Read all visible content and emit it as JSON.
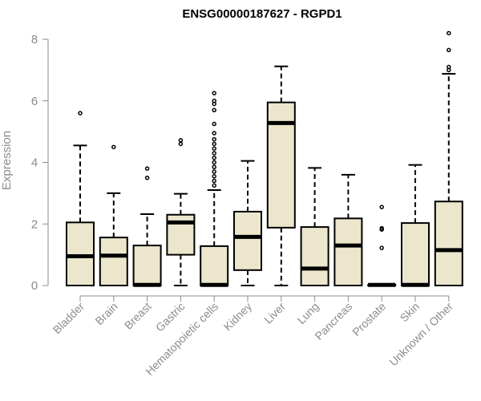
{
  "chart_data": {
    "type": "boxplot",
    "title": "ENSG00000187627 - RGPD1",
    "ylabel": "Expression",
    "xlabel": "",
    "ylim": [
      0,
      8
    ],
    "yticks": [
      0,
      2,
      4,
      6,
      8
    ],
    "grid": false,
    "legend": "none",
    "colors": {
      "box_fill": "#ece6cd",
      "box_stroke": "#000000",
      "axis": "#8c8c8c"
    },
    "categories": [
      "Bladder",
      "Brain",
      "Breast",
      "Gastric",
      "Hematopoietic cells",
      "Kidney",
      "Liver",
      "Lung",
      "Pancreas",
      "Prostate",
      "Skin",
      "Unknown / Other"
    ],
    "boxes": [
      {
        "q1": 0,
        "median": 0.95,
        "q3": 2.05,
        "whisker_low": 0,
        "whisker_high": 4.55,
        "outliers": [
          5.6
        ]
      },
      {
        "q1": 0,
        "median": 0.97,
        "q3": 1.56,
        "whisker_low": 0,
        "whisker_high": 3.0,
        "outliers": [
          4.5
        ]
      },
      {
        "q1": 0,
        "median": 0.02,
        "q3": 1.3,
        "whisker_low": 0,
        "whisker_high": 2.32,
        "outliers": [
          3.5,
          3.8
        ]
      },
      {
        "q1": 1.0,
        "median": 2.05,
        "q3": 2.3,
        "whisker_low": 0,
        "whisker_high": 2.98,
        "outliers": [
          4.6,
          4.72
        ]
      },
      {
        "q1": 0,
        "median": 0.02,
        "q3": 1.28,
        "whisker_low": 0,
        "whisker_high": 3.1,
        "outliers": [
          3.25,
          3.4,
          3.55,
          3.7,
          3.85,
          4.0,
          4.15,
          4.3,
          4.45,
          4.6,
          4.75,
          4.95,
          5.25,
          5.7,
          5.9,
          6.0,
          6.25
        ]
      },
      {
        "q1": 0.5,
        "median": 1.58,
        "q3": 2.4,
        "whisker_low": 0,
        "whisker_high": 4.05,
        "outliers": []
      },
      {
        "q1": 1.88,
        "median": 5.28,
        "q3": 5.95,
        "whisker_low": 0,
        "whisker_high": 7.12,
        "outliers": []
      },
      {
        "q1": 0,
        "median": 0.55,
        "q3": 1.9,
        "whisker_low": 0,
        "whisker_high": 3.82,
        "outliers": []
      },
      {
        "q1": 0,
        "median": 1.3,
        "q3": 2.18,
        "whisker_low": 0,
        "whisker_high": 3.6,
        "outliers": []
      },
      {
        "q1": 0,
        "median": 0.02,
        "q3": 0.02,
        "whisker_low": 0,
        "whisker_high": 0.02,
        "outliers": [
          1.22,
          1.82,
          1.86,
          2.55
        ]
      },
      {
        "q1": 0,
        "median": 0.02,
        "q3": 2.03,
        "whisker_low": 0,
        "whisker_high": 3.92,
        "outliers": []
      },
      {
        "q1": 0,
        "median": 1.15,
        "q3": 2.73,
        "whisker_low": 0,
        "whisker_high": 6.88,
        "outliers": [
          7.0,
          7.1,
          7.65,
          8.2
        ]
      }
    ]
  }
}
